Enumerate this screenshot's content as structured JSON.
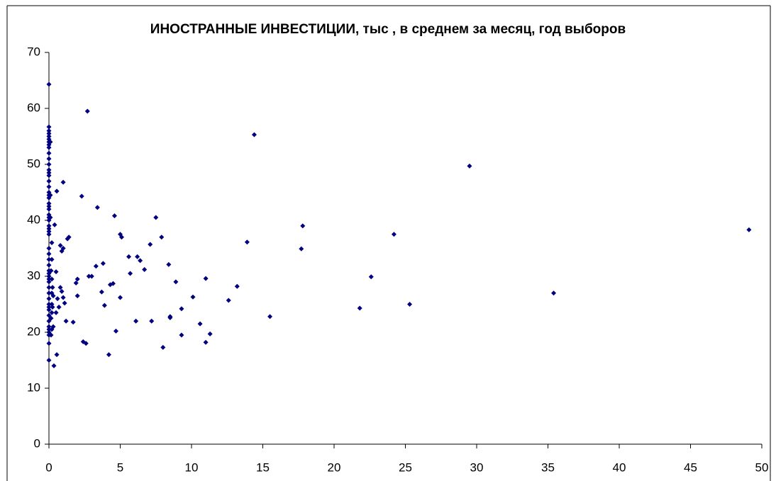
{
  "chart_data": {
    "type": "scatter",
    "title": "ИНОСТРАННЫЕ ИНВЕСТИЦИИ, тыс , в среднем за месяц, год выборов",
    "color": "#000080",
    "x": [
      0,
      0,
      0,
      0,
      0,
      0,
      0,
      0,
      0,
      0,
      0,
      0,
      0,
      0,
      0,
      0,
      0,
      0,
      0,
      0,
      0,
      0,
      0,
      0,
      0,
      0,
      0,
      0,
      0,
      0,
      0,
      0,
      0,
      0,
      0,
      0,
      0,
      0,
      0,
      0,
      0,
      0,
      0,
      0,
      0,
      0,
      0,
      0,
      0,
      0,
      0,
      0,
      0,
      0.2,
      0.2,
      0.15,
      0.2,
      0.25,
      0.2,
      0.3,
      0.2,
      0.25,
      0.2,
      0.15,
      0.3,
      0.2,
      0.15,
      0.1,
      0.1,
      0.1,
      0.35,
      0.4,
      0.5,
      0.55,
      0.6,
      0.7,
      0.5,
      0.55,
      0.8,
      0.9,
      1.0,
      0.8,
      0.9,
      1.0,
      1.1,
      1.2,
      1.0,
      1.3,
      1.4,
      1.7,
      1.9,
      2.0,
      2.0,
      2.3,
      2.4,
      2.6,
      2.7,
      2.8,
      3.0,
      3.4,
      3.3,
      3.7,
      3.8,
      3.9,
      4.2,
      4.3,
      4.5,
      4.6,
      4.7,
      5.0,
      5.1,
      5.0,
      5.6,
      5.7,
      6.1,
      6.2,
      6.4,
      6.7,
      7.1,
      7.2,
      7.5,
      7.9,
      8.0,
      8.4,
      8.5,
      8.5,
      8.9,
      9.3,
      9.3,
      10.1,
      10.6,
      11.0,
      11.0,
      11.3,
      12.6,
      13.2,
      13.9,
      14.4,
      15.5,
      17.8,
      17.7,
      21.8,
      22.6,
      24.2,
      25.3,
      29.5,
      35.4,
      49.1
    ],
    "y": [
      64.3,
      56.7,
      56,
      55.5,
      55,
      54.5,
      54,
      53.5,
      53,
      52,
      51,
      50,
      49,
      48.5,
      48,
      47,
      46,
      45,
      44.5,
      44,
      43,
      42.5,
      42,
      41,
      40.5,
      40,
      39,
      38.5,
      38,
      37.5,
      35,
      34,
      33,
      32,
      31,
      30.5,
      30,
      29.5,
      29,
      28,
      27,
      26,
      25,
      24.5,
      24,
      23,
      22,
      21,
      20.5,
      20,
      19.5,
      18,
      15,
      36,
      33,
      31,
      29.5,
      28,
      27,
      26.5,
      25,
      24.5,
      23.5,
      22.5,
      21,
      20.5,
      19.5,
      40.5,
      44.5,
      54,
      14,
      39.2,
      30.8,
      45.2,
      26,
      24.5,
      23.5,
      16,
      35.5,
      34.5,
      35,
      28,
      27.3,
      26.2,
      25.2,
      22,
      46.8,
      36.7,
      37,
      21.8,
      28.8,
      29.5,
      26.5,
      44.3,
      18.3,
      18,
      59.5,
      30,
      30,
      42.3,
      31.8,
      27.2,
      32.3,
      24.8,
      16,
      28.5,
      28.7,
      40.8,
      20.2,
      37.5,
      37,
      26.2,
      33.5,
      30.5,
      22,
      33.5,
      32.8,
      31.2,
      35.7,
      22,
      40.5,
      37,
      17.3,
      32.1,
      22.8,
      22.6,
      29,
      19.5,
      24.2,
      26.3,
      21.5,
      29.6,
      18.2,
      19.7,
      25.7,
      28.2,
      36.1,
      55.3,
      22.8,
      39,
      34.9,
      24.3,
      29.9,
      37.5,
      25,
      49.7,
      27,
      38.3
    ],
    "xlim": [
      0,
      50
    ],
    "xticks": [
      0,
      5,
      10,
      15,
      20,
      25,
      30,
      35,
      40,
      45,
      50
    ],
    "ylim": [
      0,
      70
    ],
    "yticks": [
      0,
      10,
      20,
      30,
      40,
      50,
      60,
      70
    ]
  }
}
